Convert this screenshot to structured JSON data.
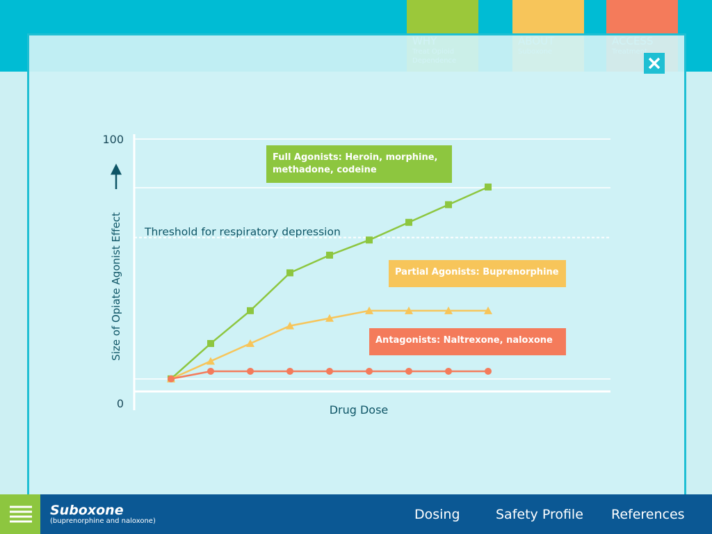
{
  "nav": {
    "items": [
      {
        "title": "WHY",
        "subtitle": "Treat Opioid Dependence"
      },
      {
        "title": "ABOUT",
        "subtitle": "Suboxone"
      },
      {
        "title": "ACCESS",
        "subtitle": "Treatment"
      }
    ]
  },
  "footer": {
    "brand": "Suboxone",
    "brand_subtitle": "(buprenorphine and naloxone)",
    "links": [
      "Dosing",
      "Safety Profile",
      "References"
    ]
  },
  "chart_data": {
    "type": "line",
    "categories": [
      null,
      null,
      null,
      null,
      null,
      null,
      null,
      null,
      null
    ],
    "y_label": "Size of Opiate Agonist Effect",
    "x_label": "Drug Dose",
    "ylim": [
      0,
      100
    ],
    "yticks": [
      0,
      100
    ],
    "threshold": {
      "label": "Threshold for respiratory depression",
      "value": 61
    },
    "series": [
      {
        "name": "Full Agonists: Heroin, morphine, methadone, codeine",
        "color": "#8dc63f",
        "marker": "square",
        "values": [
          5,
          19,
          32,
          47,
          54,
          60,
          67,
          74,
          81
        ]
      },
      {
        "name": "Partial Agonists: Buprenorphine",
        "color": "#f7c55a",
        "marker": "triangle",
        "values": [
          5,
          12,
          19,
          26,
          29,
          32,
          32,
          32,
          32
        ]
      },
      {
        "name": "Antagonists: Naltrexone, naloxone",
        "color": "#f47b5b",
        "marker": "circle",
        "values": [
          5,
          8,
          8,
          8,
          8,
          8,
          8,
          8,
          8
        ]
      }
    ]
  }
}
